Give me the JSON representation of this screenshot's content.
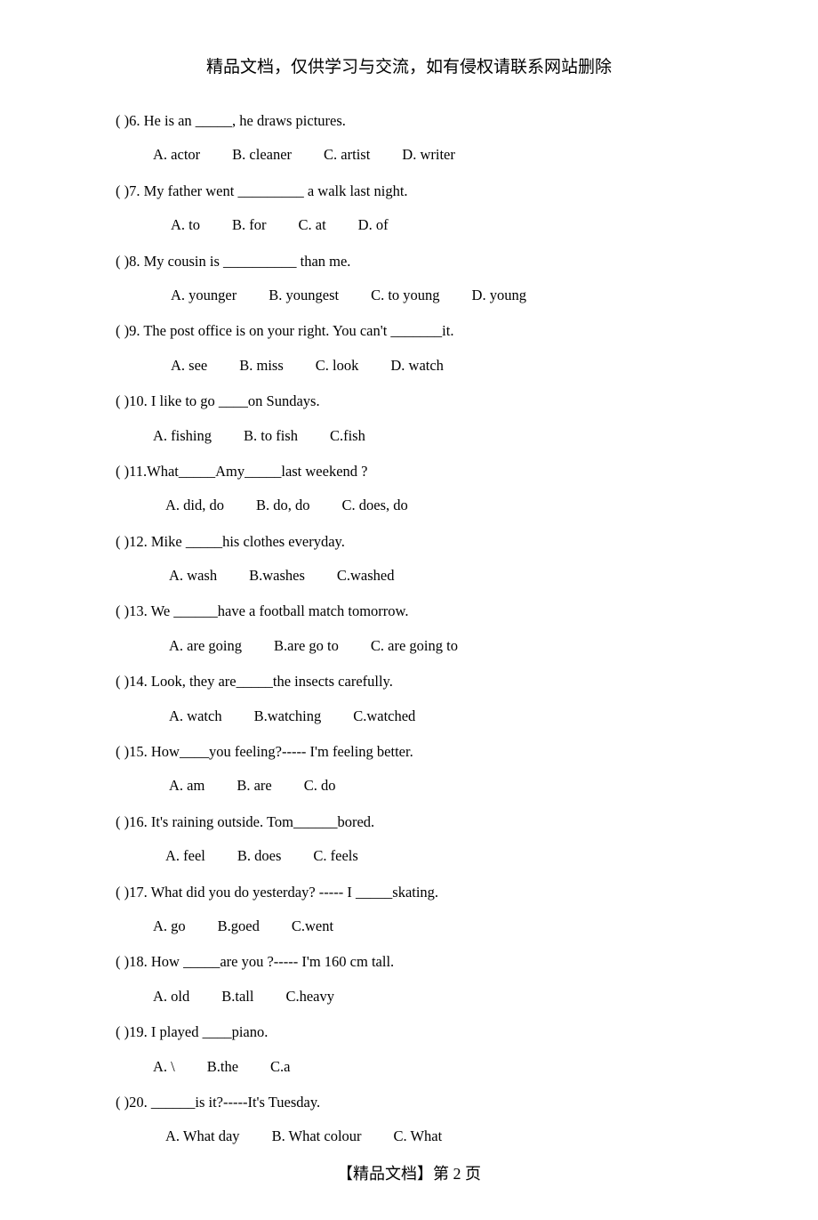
{
  "header_text": "精品文档，仅供学习与交流，如有侵权请联系网站删除",
  "footer_text": "【精品文档】第 2 页",
  "colors": {
    "text": "#000000",
    "background": "#ffffff"
  },
  "typography": {
    "body_font": "Times New Roman, serif",
    "cjk_font": "SimSun, 宋体, serif",
    "header_fontsize": 19,
    "body_fontsize": 16.5,
    "footer_fontsize": 18
  },
  "questions": [
    {
      "num": "6",
      "prompt": "(      )6. He is an _____, he draws pictures.",
      "opts": [
        "A. actor",
        "B. cleaner",
        "C. artist",
        "D. writer"
      ],
      "opts_indent": 42
    },
    {
      "num": "7",
      "prompt": "(      )7. My father went _________ a walk last night.",
      "opts": [
        "A. to",
        "B. for",
        "C. at",
        "D. of"
      ],
      "opts_indent": 62
    },
    {
      "num": "8",
      "prompt": "(      )8. My cousin is   __________ than me.",
      "opts": [
        "A. younger",
        "B. youngest",
        "C. to young",
        "D. young"
      ],
      "opts_indent": 62
    },
    {
      "num": "9",
      "prompt": "(      )9. The post office is on your right. You can't _______it.",
      "opts": [
        "A. see",
        "B. miss",
        "C. look",
        "D. watch"
      ],
      "opts_indent": 62
    },
    {
      "num": "10",
      "prompt": "(      )10. I like to go ____on Sundays.",
      "opts": [
        "A. fishing",
        "B. to fish",
        "C.fish"
      ],
      "opts_indent": 42
    },
    {
      "num": "11",
      "prompt": "(      )11.What_____Amy_____last weekend ?",
      "opts": [
        "A. did, do",
        "B. do, do",
        "C. does, do"
      ],
      "opts_indent": 56
    },
    {
      "num": "12",
      "prompt": "(      )12. Mike _____his clothes everyday.",
      "opts": [
        "A. wash",
        "B.washes",
        "C.washed"
      ],
      "opts_indent": 60
    },
    {
      "num": "13",
      "prompt": "(      )13. We ______have a football match tomorrow.",
      "opts": [
        "A. are going",
        "B.are go to",
        "C. are going to"
      ],
      "opts_indent": 60
    },
    {
      "num": "14",
      "prompt": "(      )14. Look, they are_____the insects carefully.",
      "opts": [
        "A. watch",
        "B.watching",
        "C.watched"
      ],
      "opts_indent": 60
    },
    {
      "num": "15",
      "prompt": "(      )15. How____you feeling?----- I'm feeling better.",
      "opts": [
        "A. am",
        "B. are",
        "C. do"
      ],
      "opts_indent": 60
    },
    {
      "num": "16",
      "prompt": "(      )16. It's raining outside. Tom______bored.",
      "opts": [
        "A. feel",
        "B. does",
        "C. feels"
      ],
      "opts_indent": 56
    },
    {
      "num": "17",
      "prompt": "(      )17. What did you do yesterday?  ----- I _____skating.",
      "opts": [
        "A. go",
        "B.goed",
        "C.went"
      ],
      "opts_indent": 42
    },
    {
      "num": "18",
      "prompt": "(      )18. How _____are you ?----- I'm 160 cm tall.",
      "opts": [
        "A. old",
        "B.tall",
        "C.heavy"
      ],
      "opts_indent": 42
    },
    {
      "num": "19",
      "prompt": "(      )19. I played ____piano.",
      "opts": [
        "A. \\",
        "B.the",
        "C.a"
      ],
      "opts_indent": 42
    },
    {
      "num": "20",
      "prompt": "(      )20. ______is it?-----It's Tuesday.",
      "opts": [
        "A. What day",
        "B. What colour",
        "C. What"
      ],
      "opts_indent": 56
    }
  ]
}
